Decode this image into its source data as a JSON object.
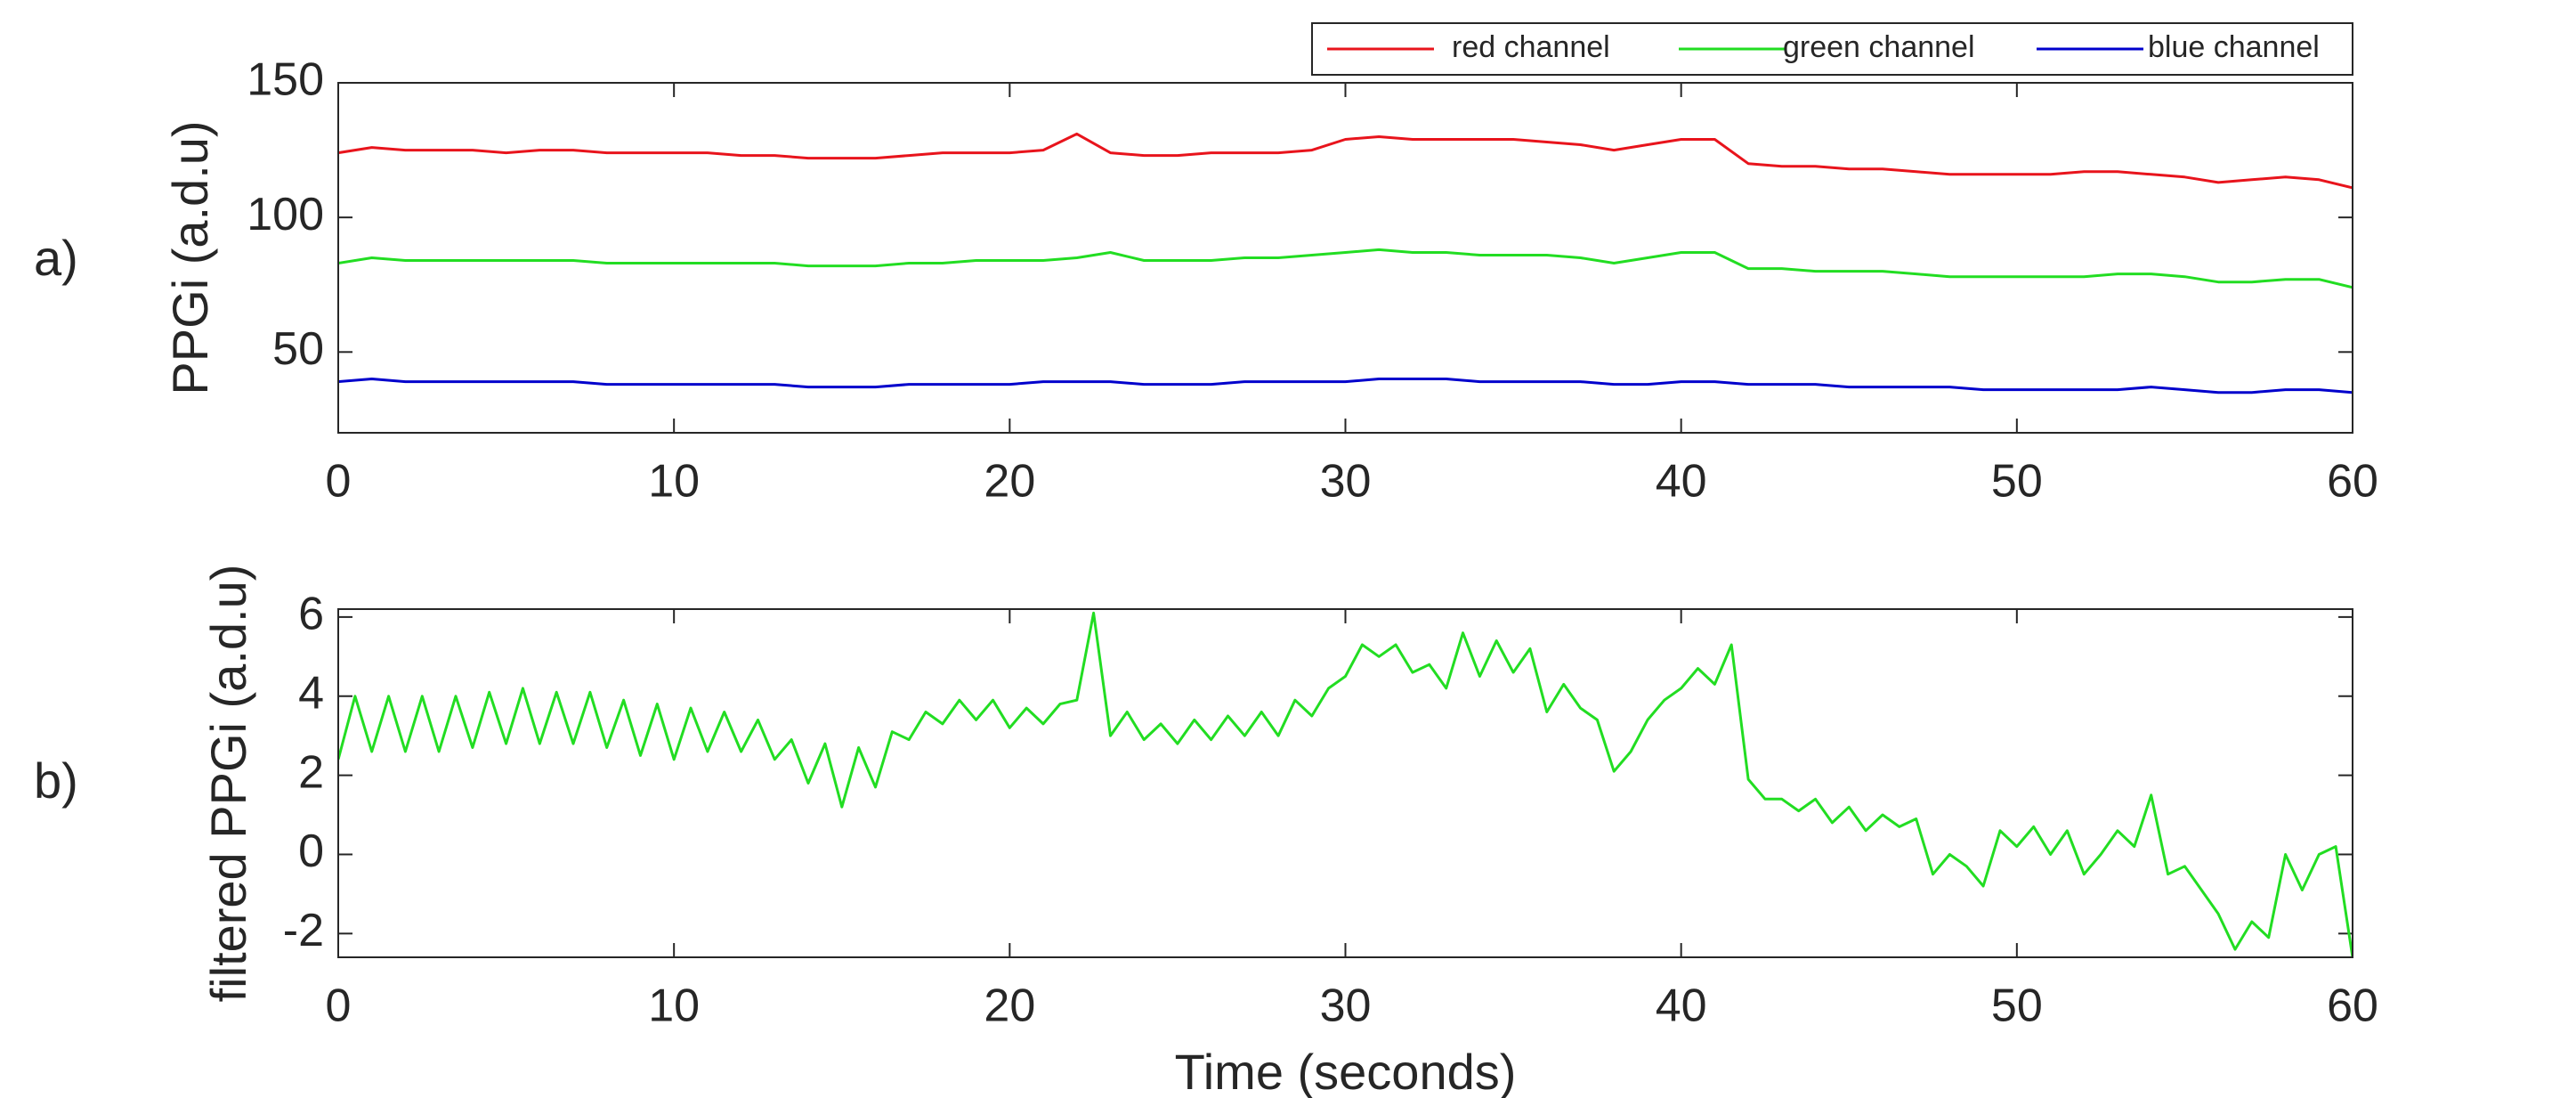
{
  "chart_data": [
    {
      "type": "line",
      "panel_label": "a)",
      "ylabel": "PPGi (a.d.u)",
      "x": [
        0,
        1,
        2,
        3,
        4,
        5,
        6,
        7,
        8,
        9,
        10,
        11,
        12,
        13,
        14,
        15,
        16,
        17,
        18,
        19,
        20,
        21,
        22,
        23,
        24,
        25,
        26,
        27,
        28,
        29,
        30,
        31,
        32,
        33,
        34,
        35,
        36,
        37,
        38,
        39,
        40,
        41,
        42,
        43,
        44,
        45,
        46,
        47,
        48,
        49,
        50,
        51,
        52,
        53,
        54,
        55,
        56,
        57,
        58,
        59,
        60
      ],
      "series": [
        {
          "name": "red channel",
          "color": "#e8141c",
          "values": [
            124,
            126,
            125,
            125,
            125,
            124,
            125,
            125,
            124,
            124,
            124,
            124,
            123,
            123,
            122,
            122,
            122,
            123,
            124,
            124,
            124,
            125,
            131,
            124,
            123,
            123,
            124,
            124,
            124,
            125,
            129,
            130,
            129,
            129,
            129,
            129,
            128,
            127,
            125,
            127,
            129,
            129,
            120,
            119,
            119,
            118,
            118,
            117,
            116,
            116,
            116,
            116,
            117,
            117,
            116,
            115,
            113,
            114,
            115,
            114,
            111
          ]
        },
        {
          "name": "green channel",
          "color": "#22dd22",
          "values": [
            83,
            85,
            84,
            84,
            84,
            84,
            84,
            84,
            83,
            83,
            83,
            83,
            83,
            83,
            82,
            82,
            82,
            83,
            83,
            84,
            84,
            84,
            85,
            87,
            84,
            84,
            84,
            85,
            85,
            86,
            87,
            88,
            87,
            87,
            86,
            86,
            86,
            85,
            83,
            85,
            87,
            87,
            81,
            81,
            80,
            80,
            80,
            79,
            78,
            78,
            78,
            78,
            78,
            79,
            79,
            78,
            76,
            76,
            77,
            77,
            74
          ]
        },
        {
          "name": "blue channel",
          "color": "#0000cc",
          "values": [
            39,
            40,
            39,
            39,
            39,
            39,
            39,
            39,
            38,
            38,
            38,
            38,
            38,
            38,
            37,
            37,
            37,
            38,
            38,
            38,
            38,
            39,
            39,
            39,
            38,
            38,
            38,
            39,
            39,
            39,
            39,
            40,
            40,
            40,
            39,
            39,
            39,
            39,
            38,
            38,
            39,
            39,
            38,
            38,
            38,
            37,
            37,
            37,
            37,
            36,
            36,
            36,
            36,
            36,
            37,
            36,
            35,
            35,
            36,
            36,
            35
          ]
        }
      ],
      "xlim": [
        0,
        60
      ],
      "xticks": [
        0,
        10,
        20,
        30,
        40,
        50,
        60
      ],
      "ylim": [
        20,
        150
      ],
      "yticks": [
        50,
        100,
        150
      ],
      "legend": "top right"
    },
    {
      "type": "line",
      "panel_label": "b)",
      "ylabel": "filtered PPGi (a.d.u)",
      "xlabel": "Time (seconds)",
      "x": [
        0,
        0.5,
        1,
        1.5,
        2,
        2.5,
        3,
        3.5,
        4,
        4.5,
        5,
        5.5,
        6,
        6.5,
        7,
        7.5,
        8,
        8.5,
        9,
        9.5,
        10,
        10.5,
        11,
        11.5,
        12,
        12.5,
        13,
        13.5,
        14,
        14.5,
        15,
        15.5,
        16,
        16.5,
        17,
        17.5,
        18,
        18.5,
        19,
        19.5,
        20,
        20.5,
        21,
        21.5,
        22,
        22.5,
        23,
        23.5,
        24,
        24.5,
        25,
        25.5,
        26,
        26.5,
        27,
        27.5,
        28,
        28.5,
        29,
        29.5,
        30,
        30.5,
        31,
        31.5,
        32,
        32.5,
        33,
        33.5,
        34,
        34.5,
        35,
        35.5,
        36,
        36.5,
        37,
        37.5,
        38,
        38.5,
        39,
        39.5,
        40,
        40.5,
        41,
        41.5,
        42,
        42.5,
        43,
        43.5,
        44,
        44.5,
        45,
        45.5,
        46,
        46.5,
        47,
        47.5,
        48,
        48.5,
        49,
        49.5,
        50,
        50.5,
        51,
        51.5,
        52,
        52.5,
        53,
        53.5,
        54,
        54.5,
        55,
        55.5,
        56,
        56.5,
        57,
        57.5,
        58,
        58.5,
        59,
        59.5,
        60
      ],
      "series": [
        {
          "name": "green channel",
          "color": "#22dd22",
          "values": [
            2.4,
            4.0,
            2.6,
            4.0,
            2.6,
            4.0,
            2.6,
            4.0,
            2.7,
            4.1,
            2.8,
            4.2,
            2.8,
            4.1,
            2.8,
            4.1,
            2.7,
            3.9,
            2.5,
            3.8,
            2.4,
            3.7,
            2.6,
            3.6,
            2.6,
            3.4,
            2.4,
            2.9,
            1.8,
            2.8,
            1.2,
            2.7,
            1.7,
            3.1,
            2.9,
            3.6,
            3.3,
            3.9,
            3.4,
            3.9,
            3.2,
            3.7,
            3.3,
            3.8,
            3.9,
            6.1,
            3.0,
            3.6,
            2.9,
            3.3,
            2.8,
            3.4,
            2.9,
            3.5,
            3.0,
            3.6,
            3.0,
            3.9,
            3.5,
            4.2,
            4.5,
            5.3,
            5.0,
            5.3,
            4.6,
            4.8,
            4.2,
            5.6,
            4.5,
            5.4,
            4.6,
            5.2,
            3.6,
            4.3,
            3.7,
            3.4,
            2.1,
            2.6,
            3.4,
            3.9,
            4.2,
            4.7,
            4.3,
            5.3,
            1.9,
            1.4,
            1.4,
            1.1,
            1.4,
            0.8,
            1.2,
            0.6,
            1.0,
            0.7,
            0.9,
            -0.5,
            0.0,
            -0.3,
            -0.8,
            0.6,
            0.2,
            0.7,
            0.0,
            0.6,
            -0.5,
            0.0,
            0.6,
            0.2,
            1.5,
            -0.5,
            -0.3,
            -0.9,
            -1.5,
            -2.4,
            -1.7,
            -2.1,
            0.0,
            -0.9,
            0.0,
            0.2,
            -2.6
          ]
        }
      ],
      "xlim": [
        0,
        60
      ],
      "xticks": [
        0,
        10,
        20,
        30,
        40,
        50,
        60
      ],
      "ylim": [
        -2.6,
        6.2
      ],
      "yticks": [
        -2,
        0,
        2,
        4,
        6
      ]
    }
  ]
}
